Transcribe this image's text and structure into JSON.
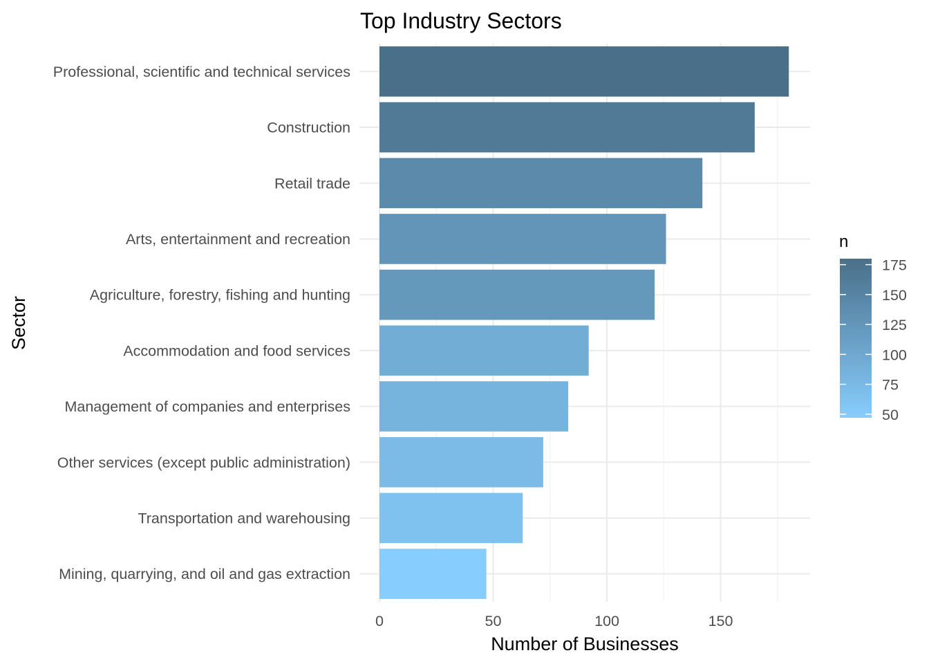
{
  "chart_data": {
    "type": "bar",
    "orientation": "horizontal",
    "title": "Top Industry Sectors",
    "xlabel": "Number of Businesses",
    "ylabel": "Sector",
    "categories": [
      "Professional, scientific and technical services",
      "Construction",
      "Retail trade",
      "Arts, entertainment and recreation",
      "Agriculture, forestry, fishing and hunting",
      "Accommodation and food services",
      "Management of companies and enterprises",
      "Other services (except public administration)",
      "Transportation and warehousing",
      "Mining, quarrying, and oil and gas extraction"
    ],
    "values": [
      180,
      165,
      142,
      126,
      121,
      92,
      83,
      72,
      63,
      47
    ],
    "xlim": [
      0,
      189
    ],
    "x_ticks": [
      0,
      50,
      100,
      150
    ],
    "grid": true,
    "legend": {
      "title": "n",
      "position": "right",
      "type": "colorbar",
      "ticks": [
        50,
        75,
        100,
        125,
        150,
        175
      ],
      "range": [
        47,
        180
      ],
      "low_color": "#87cdfd",
      "high_color": "#4a6f89"
    }
  }
}
